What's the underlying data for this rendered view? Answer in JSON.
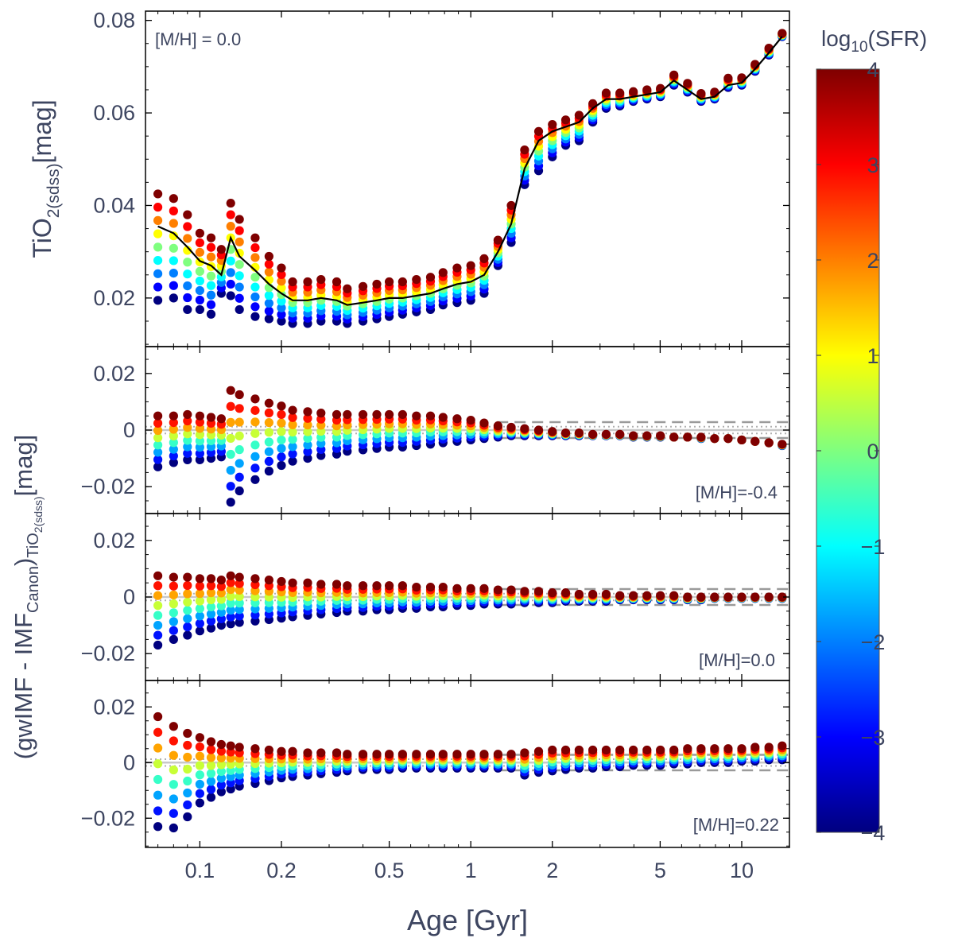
{
  "chart_data": {
    "type": "scatter",
    "xscale": "log",
    "xlim": [
      0.063,
      15
    ],
    "xlabel": "Age [Gyr]",
    "x_ticks": [
      0.1,
      0.2,
      0.5,
      1,
      2,
      5,
      10
    ],
    "x_tick_labels": [
      "0.1",
      "0.2",
      "0.5",
      "1",
      "2",
      "5",
      "10"
    ],
    "ages": [
      0.07,
      0.08,
      0.09,
      0.1,
      0.11,
      0.12,
      0.13,
      0.14,
      0.16,
      0.18,
      0.2,
      0.22,
      0.25,
      0.28,
      0.32,
      0.35,
      0.4,
      0.45,
      0.5,
      0.56,
      0.63,
      0.71,
      0.79,
      0.89,
      1.0,
      1.12,
      1.26,
      1.41,
      1.58,
      1.78,
      2.0,
      2.24,
      2.51,
      2.82,
      3.16,
      3.55,
      3.98,
      4.47,
      5.01,
      5.62,
      6.31,
      7.08,
      7.94,
      8.91,
      10.0,
      11.2,
      12.6,
      14.1
    ],
    "colorbar": {
      "label_pre": "log",
      "label_sub": "10",
      "label_post": "(SFR)",
      "range": [
        -4,
        4
      ],
      "tick_labels": [
        "4",
        "3",
        "2",
        "1",
        "0",
        "−1",
        "−2",
        "−3",
        "−4"
      ],
      "colors": [
        "#00007f",
        "#0000ff",
        "#007fff",
        "#00ffff",
        "#7fff7f",
        "#ffff00",
        "#ff7f00",
        "#ff0000",
        "#7f0000"
      ]
    },
    "panels": [
      {
        "id": "top",
        "annotation": "[M/H] = 0.0",
        "ylim": [
          0.0095,
          0.082
        ],
        "y_ticks": [
          0.02,
          0.04,
          0.06,
          0.08
        ],
        "y_tick_labels": [
          "0.02",
          "0.04",
          "0.06",
          "0.08"
        ],
        "ylabel_main": "TiO",
        "ylabel_sub": "2(sdss)",
        "ylabel_post": "[mag]",
        "canonical_line": [
          0.0355,
          0.034,
          0.031,
          0.028,
          0.027,
          0.025,
          0.033,
          0.029,
          0.026,
          0.023,
          0.021,
          0.0195,
          0.0195,
          0.02,
          0.0195,
          0.0185,
          0.019,
          0.0195,
          0.02,
          0.02,
          0.0205,
          0.021,
          0.022,
          0.023,
          0.0235,
          0.025,
          0.03,
          0.036,
          0.048,
          0.054,
          0.056,
          0.057,
          0.058,
          0.061,
          0.063,
          0.063,
          0.0635,
          0.064,
          0.0645,
          0.067,
          0.065,
          0.063,
          0.0635,
          0.066,
          0.0665,
          0.0695,
          0.073,
          0.0765
        ],
        "value_at_max_sfr": [
          0.0425,
          0.0415,
          0.038,
          0.034,
          0.033,
          0.0305,
          0.0405,
          0.037,
          0.033,
          0.029,
          0.0265,
          0.0235,
          0.0235,
          0.024,
          0.0235,
          0.022,
          0.0225,
          0.023,
          0.0235,
          0.0235,
          0.024,
          0.0245,
          0.0255,
          0.0265,
          0.027,
          0.0285,
          0.0325,
          0.04,
          0.052,
          0.056,
          0.0575,
          0.0585,
          0.0595,
          0.062,
          0.0643,
          0.0643,
          0.0646,
          0.065,
          0.0653,
          0.0682,
          0.0664,
          0.0642,
          0.0645,
          0.0675,
          0.0676,
          0.0705,
          0.074,
          0.0772
        ],
        "value_at_min_sfr": [
          0.0195,
          0.02,
          0.0175,
          0.0175,
          0.0165,
          0.021,
          0.0205,
          0.0175,
          0.016,
          0.0155,
          0.015,
          0.0145,
          0.0145,
          0.015,
          0.015,
          0.0145,
          0.015,
          0.0155,
          0.016,
          0.0165,
          0.017,
          0.0175,
          0.0185,
          0.019,
          0.0195,
          0.021,
          0.027,
          0.032,
          0.0445,
          0.0475,
          0.0505,
          0.053,
          0.054,
          0.058,
          0.061,
          0.0615,
          0.0625,
          0.063,
          0.0635,
          0.066,
          0.0645,
          0.0625,
          0.063,
          0.0655,
          0.066,
          0.069,
          0.0725,
          0.0765
        ]
      },
      {
        "id": "mh-0.4",
        "annotation": "[M/H]=-0.4",
        "ylim": [
          -0.0295,
          0.0295
        ],
        "y_ticks": [
          0.02,
          0,
          -0.02
        ],
        "y_tick_labels": [
          "0.02",
          "0",
          "−0.02"
        ],
        "value_at_max_sfr": [
          0.005,
          0.005,
          0.0055,
          0.005,
          0.0045,
          0.004,
          0.014,
          0.0125,
          0.011,
          0.0095,
          0.0085,
          0.007,
          0.0065,
          0.006,
          0.0055,
          0.0055,
          0.0055,
          0.0055,
          0.0055,
          0.0055,
          0.005,
          0.005,
          0.0045,
          0.004,
          0.0035,
          0.0025,
          0.0015,
          0.001,
          0.0005,
          0.0,
          -0.0005,
          -0.001,
          -0.001,
          -0.0015,
          -0.0015,
          -0.0015,
          -0.002,
          -0.002,
          -0.002,
          -0.0025,
          -0.0025,
          -0.0025,
          -0.003,
          -0.003,
          -0.0035,
          -0.004,
          -0.0045,
          -0.005
        ],
        "value_at_min_sfr": [
          -0.013,
          -0.0115,
          -0.0105,
          -0.0105,
          -0.01,
          -0.0095,
          -0.0255,
          -0.0215,
          -0.0175,
          -0.0145,
          -0.0125,
          -0.011,
          -0.01,
          -0.009,
          -0.0085,
          -0.0075,
          -0.007,
          -0.0065,
          -0.006,
          -0.006,
          -0.0055,
          -0.005,
          -0.0045,
          -0.004,
          -0.0035,
          -0.003,
          -0.0025,
          -0.002,
          -0.002,
          -0.002,
          -0.002,
          -0.002,
          -0.002,
          -0.002,
          -0.002,
          -0.002,
          -0.0025,
          -0.0025,
          -0.0025,
          -0.0025,
          -0.0025,
          -0.003,
          -0.003,
          -0.003,
          -0.0035,
          -0.004,
          -0.0045,
          -0.0055
        ]
      },
      {
        "id": "mh0.0",
        "annotation": "[M/H]=0.0",
        "ylim": [
          -0.0295,
          0.0295
        ],
        "y_ticks": [
          0.02,
          0,
          -0.02
        ],
        "y_tick_labels": [
          "0.02",
          "0",
          "−0.02"
        ],
        "value_at_max_sfr": [
          0.0075,
          0.007,
          0.007,
          0.0065,
          0.0065,
          0.006,
          0.0075,
          0.007,
          0.0065,
          0.006,
          0.0055,
          0.005,
          0.005,
          0.0045,
          0.0045,
          0.004,
          0.004,
          0.004,
          0.004,
          0.004,
          0.0035,
          0.0035,
          0.0035,
          0.003,
          0.003,
          0.003,
          0.0025,
          0.0025,
          0.002,
          0.002,
          0.0015,
          0.0015,
          0.001,
          0.001,
          0.001,
          0.0005,
          0.0005,
          0.0005,
          0.0005,
          0.0005,
          0.0,
          0.0,
          0.0,
          0.0,
          0.0,
          0.0,
          0.0,
          0.0
        ],
        "value_at_min_sfr": [
          -0.017,
          -0.015,
          -0.0135,
          -0.012,
          -0.011,
          -0.01,
          -0.0095,
          -0.009,
          -0.0085,
          -0.008,
          -0.0075,
          -0.007,
          -0.0065,
          -0.006,
          -0.0055,
          -0.005,
          -0.005,
          -0.0045,
          -0.0045,
          -0.004,
          -0.004,
          -0.0035,
          -0.0035,
          -0.003,
          -0.003,
          -0.0025,
          -0.0025,
          -0.0025,
          -0.002,
          -0.002,
          -0.002,
          -0.0015,
          -0.0015,
          -0.0015,
          -0.0015,
          -0.001,
          -0.001,
          -0.001,
          -0.001,
          -0.001,
          -0.001,
          -0.001,
          -0.0005,
          -0.0005,
          -0.0005,
          -0.0005,
          -0.0005,
          -0.0005
        ]
      },
      {
        "id": "mh0.22",
        "annotation": "[M/H]=0.22",
        "ylim": [
          -0.0305,
          0.0295
        ],
        "y_ticks": [
          0.02,
          0,
          -0.02
        ],
        "y_tick_labels": [
          "0.02",
          "0",
          "−0.02"
        ],
        "value_at_max_sfr": [
          0.0165,
          0.013,
          0.0105,
          0.009,
          0.0075,
          0.0065,
          0.006,
          0.0055,
          0.005,
          0.0045,
          0.004,
          0.004,
          0.0035,
          0.0035,
          0.0035,
          0.003,
          0.003,
          0.003,
          0.003,
          0.003,
          0.003,
          0.003,
          0.003,
          0.003,
          0.003,
          0.003,
          0.003,
          0.003,
          0.0035,
          0.004,
          0.0045,
          0.0045,
          0.0045,
          0.0045,
          0.0045,
          0.0045,
          0.0045,
          0.0045,
          0.0045,
          0.0045,
          0.005,
          0.005,
          0.005,
          0.005,
          0.005,
          0.0055,
          0.0055,
          0.006
        ],
        "value_at_min_sfr": [
          -0.023,
          -0.0235,
          -0.0195,
          -0.0145,
          -0.0125,
          -0.0105,
          -0.0095,
          -0.0085,
          -0.0075,
          -0.0065,
          -0.0055,
          -0.005,
          -0.0045,
          -0.004,
          -0.0035,
          -0.003,
          -0.0025,
          -0.0025,
          -0.0025,
          -0.002,
          -0.002,
          -0.002,
          -0.002,
          -0.002,
          -0.002,
          -0.002,
          -0.002,
          -0.002,
          -0.0045,
          -0.0035,
          -0.003,
          -0.0025,
          -0.002,
          -0.002,
          -0.0015,
          -0.0015,
          -0.001,
          -0.001,
          -0.001,
          -0.0005,
          -0.0005,
          0.0,
          0.0,
          0.0,
          0.0005,
          0.0005,
          0.001,
          0.001
        ]
      }
    ],
    "shared_ylabel": {
      "pre": "(gwIMF - IMF",
      "sub1": "Canon",
      "mid": ")",
      "sub2": "TiO",
      "sub3": "2(sdss)",
      "post": "[mag]"
    },
    "reference_lines": {
      "solid_gray": 0.0,
      "dotted_band": 0.0012,
      "dashed_band": 0.0028
    }
  }
}
